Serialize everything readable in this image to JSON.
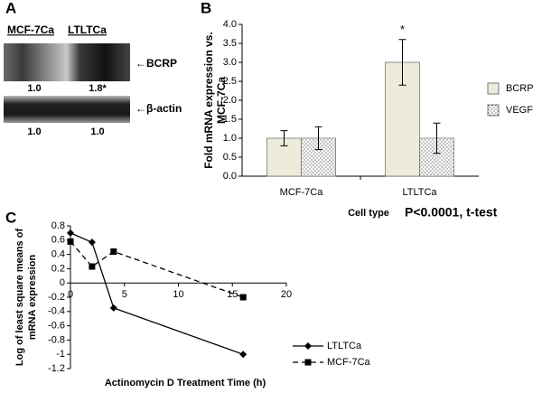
{
  "blot": {
    "panel": "A",
    "lanes": [
      "MCF-7Ca",
      "LTLTCa"
    ],
    "bands": [
      {
        "label": "←BCRP",
        "values": [
          "1.0",
          "1.8*"
        ]
      },
      {
        "label": "←β-actin",
        "values": [
          "1.0",
          "1.0"
        ]
      }
    ]
  },
  "chart_data": [
    {
      "type": "bar",
      "panel": "B",
      "ylabel": [
        "Fold mRNA expression vs.",
        "MCF-7Ca"
      ],
      "xlabel": "Cell type",
      "note": "P<0.0001, t-test",
      "star": "*",
      "categories": [
        "MCF-7Ca",
        "LTLTCa"
      ],
      "series": [
        {
          "name": "BCRP",
          "color": "#ecebdc",
          "values": [
            1.0,
            3.0
          ],
          "errors": [
            0.2,
            0.6
          ]
        },
        {
          "name": "VEGF",
          "color": "#ffffff",
          "fill": "dots",
          "values": [
            1.0,
            1.0
          ],
          "errors": [
            0.3,
            0.4
          ]
        }
      ],
      "ylim": [
        0,
        4
      ],
      "yticks": [
        {
          "value": 0,
          "label": "0.0"
        },
        {
          "value": 0.5,
          "label": "0.5"
        },
        {
          "value": 1,
          "label": "1.0"
        },
        {
          "value": 1.5,
          "label": "1.5"
        },
        {
          "value": 2,
          "label": "2.0"
        },
        {
          "value": 2.5,
          "label": "2.5"
        },
        {
          "value": 3,
          "label": "3.0"
        },
        {
          "value": 3.5,
          "label": "3.5"
        },
        {
          "value": 4,
          "label": "4.0"
        }
      ],
      "legend": "right",
      "grid": false
    },
    {
      "type": "line",
      "panel": "C",
      "ylabel": [
        "Log of least square means of",
        "mRNA expression"
      ],
      "xlabel": "Actinomycin D Treatment Time (h)",
      "x": [
        0,
        2,
        4,
        16
      ],
      "series": [
        {
          "name": "LTLTCa",
          "color": "#000000",
          "style": "solid",
          "marker": "diamond",
          "values": [
            0.7,
            0.57,
            -0.35,
            -1.0
          ]
        },
        {
          "name": "MCF-7Ca",
          "color": "#000000",
          "style": "dashed",
          "marker": "square",
          "values": [
            0.58,
            0.23,
            0.44,
            -0.2
          ]
        }
      ],
      "xlim": [
        0,
        20
      ],
      "xticks": [
        0,
        5,
        10,
        15,
        20
      ],
      "ylim": [
        -1.2,
        0.8
      ],
      "yticks": [
        -1.2,
        -1,
        -0.8,
        -0.6,
        -0.4,
        -0.2,
        0,
        0.2,
        0.4,
        0.6,
        0.8
      ],
      "legend": "right",
      "grid": false
    }
  ]
}
